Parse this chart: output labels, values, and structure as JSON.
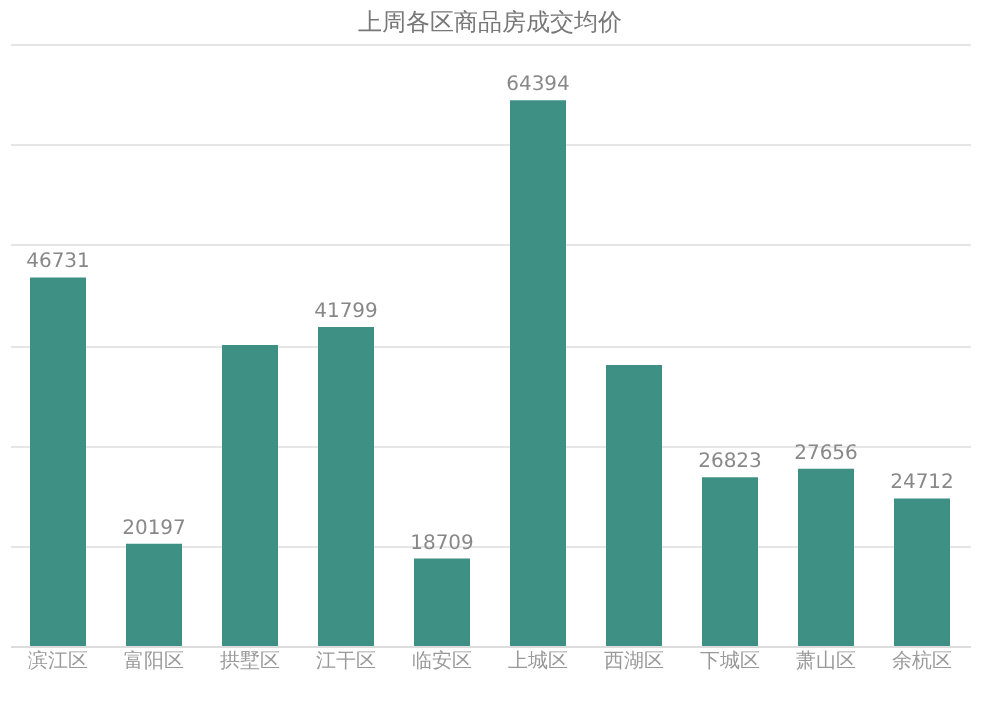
{
  "chart_data": {
    "type": "bar",
    "title": "上周各区商品房成交均价",
    "categories": [
      "滨江区",
      "富阳区",
      "拱墅区",
      "江干区",
      "临安区",
      "上城区",
      "西湖区",
      "下城区",
      "萧山区",
      "余杭区"
    ],
    "values": [
      46731,
      20197,
      40000,
      41799,
      18709,
      64394,
      38000,
      26823,
      27656,
      24712
    ],
    "value_labels": [
      "46731",
      "20197",
      null,
      "41799",
      "18709",
      "64394",
      null,
      "26823",
      "27656",
      "24712"
    ],
    "color": "#3f9084",
    "ylim": [
      10000,
      70000
    ],
    "yticks": [
      {
        "value": 10000,
        "label": null
      },
      {
        "value": 20000,
        "label": null
      },
      {
        "value": 30000,
        "label": null
      },
      {
        "value": 40000,
        "label": null
      },
      {
        "value": 50000,
        "label": null
      },
      {
        "value": 60000,
        "label": null
      },
      {
        "value": 70000,
        "label": null
      }
    ],
    "grid": "y",
    "tick_labels": "x"
  }
}
